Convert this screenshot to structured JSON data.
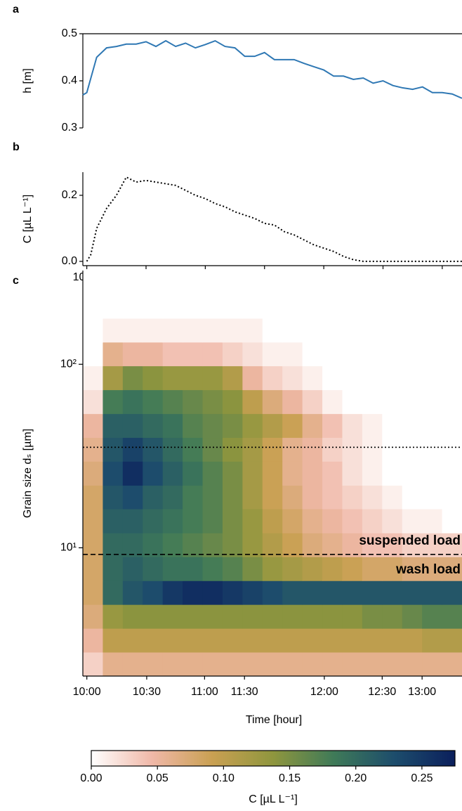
{
  "chart_data": [
    {
      "type": "line",
      "label": "a",
      "ylabel": "h [m]",
      "x": [
        "09:58",
        "10:00",
        "10:05",
        "10:10",
        "10:15",
        "10:20",
        "10:25",
        "10:30",
        "10:35",
        "10:40",
        "10:45",
        "10:50",
        "10:55",
        "11:00",
        "11:05",
        "11:10",
        "11:15",
        "11:20",
        "11:25",
        "11:30",
        "11:35",
        "11:40",
        "11:45",
        "11:50",
        "11:55",
        "12:00",
        "12:05",
        "12:10",
        "12:15",
        "12:20",
        "12:25",
        "12:30",
        "12:35",
        "12:40",
        "12:45",
        "12:50",
        "12:55",
        "13:00",
        "13:05",
        "13:10"
      ],
      "series": [
        {
          "color": "#2f78b4",
          "linestyle": "solid",
          "values": [
            0.37,
            0.375,
            0.45,
            0.47,
            0.473,
            0.478,
            0.478,
            0.483,
            0.473,
            0.485,
            0.473,
            0.48,
            0.47,
            0.477,
            0.485,
            0.473,
            0.47,
            0.452,
            0.452,
            0.46,
            0.445,
            0.445,
            0.445,
            0.437,
            0.43,
            0.423,
            0.41,
            0.41,
            0.403,
            0.406,
            0.395,
            0.4,
            0.39,
            0.385,
            0.382,
            0.387,
            0.375,
            0.375,
            0.372,
            0.363
          ]
        }
      ],
      "xlim": [
        "09:58",
        "13:10"
      ],
      "ylim": [
        0.3,
        0.5
      ],
      "yticks": [
        0.3,
        0.4,
        0.5
      ]
    },
    {
      "type": "line",
      "label": "b",
      "ylabel": "C [µL L⁻¹]",
      "x": [
        "10:00",
        "10:02",
        "10:05",
        "10:10",
        "10:15",
        "10:20",
        "10:25",
        "10:30",
        "10:35",
        "10:40",
        "10:45",
        "10:50",
        "10:55",
        "11:00",
        "11:05",
        "11:10",
        "11:15",
        "11:20",
        "11:25",
        "11:30",
        "11:35",
        "11:40",
        "11:45",
        "11:50",
        "11:55",
        "12:00",
        "12:05",
        "12:10",
        "12:15",
        "12:20",
        "12:25",
        "12:30",
        "12:35",
        "12:40",
        "12:45",
        "12:50",
        "12:55",
        "13:00",
        "13:05",
        "13:10"
      ],
      "series": [
        {
          "color": "#000000",
          "linestyle": "dotted",
          "values": [
            0.0,
            0.02,
            0.1,
            0.16,
            0.2,
            0.255,
            0.24,
            0.245,
            0.24,
            0.235,
            0.23,
            0.215,
            0.2,
            0.19,
            0.175,
            0.165,
            0.15,
            0.14,
            0.13,
            0.115,
            0.11,
            0.09,
            0.08,
            0.065,
            0.05,
            0.04,
            0.03,
            0.015,
            0.005,
            0.0,
            0.0,
            0.0,
            0.0,
            0.0,
            0.0,
            0.0,
            0.0,
            0.0,
            0.0,
            0.0
          ]
        }
      ],
      "xlim": [
        "09:58",
        "13:10"
      ],
      "xticks": [
        "10:00",
        "10:30",
        "11:00",
        "11:30",
        "12:00",
        "12:30",
        "13:00"
      ],
      "ylim": [
        -0.013,
        0.27
      ],
      "yticks": [
        {
          "value": 0,
          "label": "0.0"
        },
        0.2
      ]
    },
    {
      "type": "heatmap",
      "label": "c",
      "ylabel": "Grain size dₛ [µm]",
      "xlabel": "Time [hour]",
      "xlim": [
        0,
        19
      ],
      "xticks": [
        {
          "value": 0.2,
          "label": "10:00"
        },
        {
          "value": 3.2,
          "label": "10:30"
        },
        {
          "value": 6.1,
          "label": "11:00"
        },
        {
          "value": 8.1,
          "label": "11:30"
        },
        {
          "value": 12.1,
          "label": "12:00"
        },
        {
          "value": 15,
          "label": "12:30"
        },
        {
          "value": 17,
          "label": "13:00"
        }
      ],
      "log_y": true,
      "ylim": [
        2,
        324
      ],
      "yticks": [
        {
          "value": 10,
          "label": "10¹"
        },
        {
          "value": 100,
          "label": "10²"
        }
      ],
      "y_bins": [
        2.0,
        2.7,
        3.64,
        4.91,
        6.62,
        8.93,
        12.05,
        16.3,
        21.9,
        29.6,
        39.9,
        53.8,
        72.6,
        98,
        132,
        178,
        240,
        324
      ],
      "z": [
        [
          0.03,
          0.06,
          0.06,
          0.06,
          0.06,
          0.06,
          0.06,
          0.06,
          0.06,
          0.06,
          0.06,
          0.06,
          0.06,
          0.06,
          0.06,
          0.06,
          0.06,
          0.06,
          0.06
        ],
        [
          0.05,
          0.1,
          0.1,
          0.1,
          0.1,
          0.1,
          0.1,
          0.1,
          0.1,
          0.1,
          0.1,
          0.1,
          0.1,
          0.1,
          0.1,
          0.1,
          0.1,
          0.11,
          0.11
        ],
        [
          0.07,
          0.13,
          0.14,
          0.14,
          0.14,
          0.14,
          0.14,
          0.14,
          0.14,
          0.14,
          0.14,
          0.14,
          0.14,
          0.14,
          0.15,
          0.15,
          0.16,
          0.17,
          0.17
        ],
        [
          0.08,
          0.2,
          0.22,
          0.23,
          0.25,
          0.26,
          0.26,
          0.25,
          0.24,
          0.23,
          0.22,
          0.22,
          0.22,
          0.22,
          0.22,
          0.22,
          0.22,
          0.22,
          0.22
        ],
        [
          0.08,
          0.2,
          0.21,
          0.2,
          0.19,
          0.19,
          0.18,
          0.17,
          0.15,
          0.13,
          0.12,
          0.11,
          0.1,
          0.09,
          0.08,
          0.08,
          0.07,
          0.07,
          0.07
        ],
        [
          0.08,
          0.2,
          0.2,
          0.19,
          0.18,
          0.17,
          0.16,
          0.15,
          0.13,
          0.11,
          0.09,
          0.07,
          0.06,
          0.05,
          0.04,
          0.04,
          0.03,
          0.03,
          0.03
        ],
        [
          0.08,
          0.21,
          0.21,
          0.2,
          0.19,
          0.18,
          0.17,
          0.15,
          0.13,
          0.1,
          0.08,
          0.06,
          0.05,
          0.04,
          0.03,
          0.02,
          0.01,
          0.01,
          0.0
        ],
        [
          0.08,
          0.22,
          0.23,
          0.21,
          0.2,
          0.18,
          0.17,
          0.15,
          0.12,
          0.09,
          0.07,
          0.05,
          0.04,
          0.03,
          0.02,
          0.01,
          0.0,
          0.0,
          0.0
        ],
        [
          0.07,
          0.23,
          0.26,
          0.23,
          0.21,
          0.19,
          0.17,
          0.15,
          0.12,
          0.09,
          0.06,
          0.05,
          0.04,
          0.02,
          0.01,
          0.0,
          0.0,
          0.0,
          0.0
        ],
        [
          0.06,
          0.22,
          0.24,
          0.22,
          0.2,
          0.18,
          0.16,
          0.14,
          0.12,
          0.09,
          0.06,
          0.05,
          0.03,
          0.02,
          0.01,
          0.0,
          0.0,
          0.0,
          0.0
        ],
        [
          0.05,
          0.21,
          0.21,
          0.2,
          0.19,
          0.17,
          0.16,
          0.15,
          0.13,
          0.11,
          0.09,
          0.06,
          0.04,
          0.02,
          0.01,
          0.0,
          0.0,
          0.0,
          0.0
        ],
        [
          0.02,
          0.18,
          0.19,
          0.18,
          0.17,
          0.16,
          0.15,
          0.14,
          0.1,
          0.07,
          0.05,
          0.03,
          0.01,
          0.0,
          0.0,
          0.0,
          0.0,
          0.0,
          0.0
        ],
        [
          0.01,
          0.12,
          0.15,
          0.14,
          0.13,
          0.13,
          0.13,
          0.11,
          0.05,
          0.03,
          0.02,
          0.01,
          0.0,
          0.0,
          0.0,
          0.0,
          0.0,
          0.0,
          0.0
        ],
        [
          0.0,
          0.06,
          0.05,
          0.05,
          0.04,
          0.04,
          0.04,
          0.03,
          0.02,
          0.01,
          0.01,
          0.0,
          0.0,
          0.0,
          0.0,
          0.0,
          0.0,
          0.0,
          0.0
        ],
        [
          0.0,
          0.01,
          0.01,
          0.01,
          0.01,
          0.01,
          0.01,
          0.01,
          0.01,
          0.0,
          0.0,
          0.0,
          0.0,
          0.0,
          0.0,
          0.0,
          0.0,
          0.0,
          0.0
        ],
        [
          0.0,
          0.0,
          0.0,
          0.0,
          0.0,
          0.0,
          0.0,
          0.0,
          0.0,
          0.0,
          0.0,
          0.0,
          0.0,
          0.0,
          0.0,
          0.0,
          0.0,
          0.0,
          0.0
        ],
        [
          0.0,
          0.0,
          0.0,
          0.0,
          0.0,
          0.0,
          0.0,
          0.0,
          0.0,
          0.0,
          0.0,
          0.0,
          0.0,
          0.0,
          0.0,
          0.0,
          0.0,
          0.0,
          0.0
        ]
      ],
      "colormap": [
        "#ffffff",
        "#f0b8a8",
        "#c9a052",
        "#8f963e",
        "#3f7a58",
        "#1d4d6c",
        "#0b1f5c"
      ],
      "zlim": [
        0,
        0.275
      ],
      "zticks": [
        {
          "value": 0,
          "label": "0.00"
        },
        {
          "value": 0.05,
          "label": "0.05"
        },
        {
          "value": 0.1,
          "label": "0.10"
        },
        {
          "value": 0.15,
          "label": "0.15"
        },
        {
          "value": 0.2,
          "label": "0.20"
        },
        {
          "value": 0.25,
          "label": "0.25"
        }
      ],
      "colorbar_label": "C [µL L⁻¹]",
      "hlines": [
        {
          "value": 35.3,
          "linestyle": "dotted"
        },
        {
          "value": 9.2,
          "linestyle": "dashed"
        }
      ],
      "annotations": [
        "suspended load",
        "wash load"
      ]
    }
  ]
}
